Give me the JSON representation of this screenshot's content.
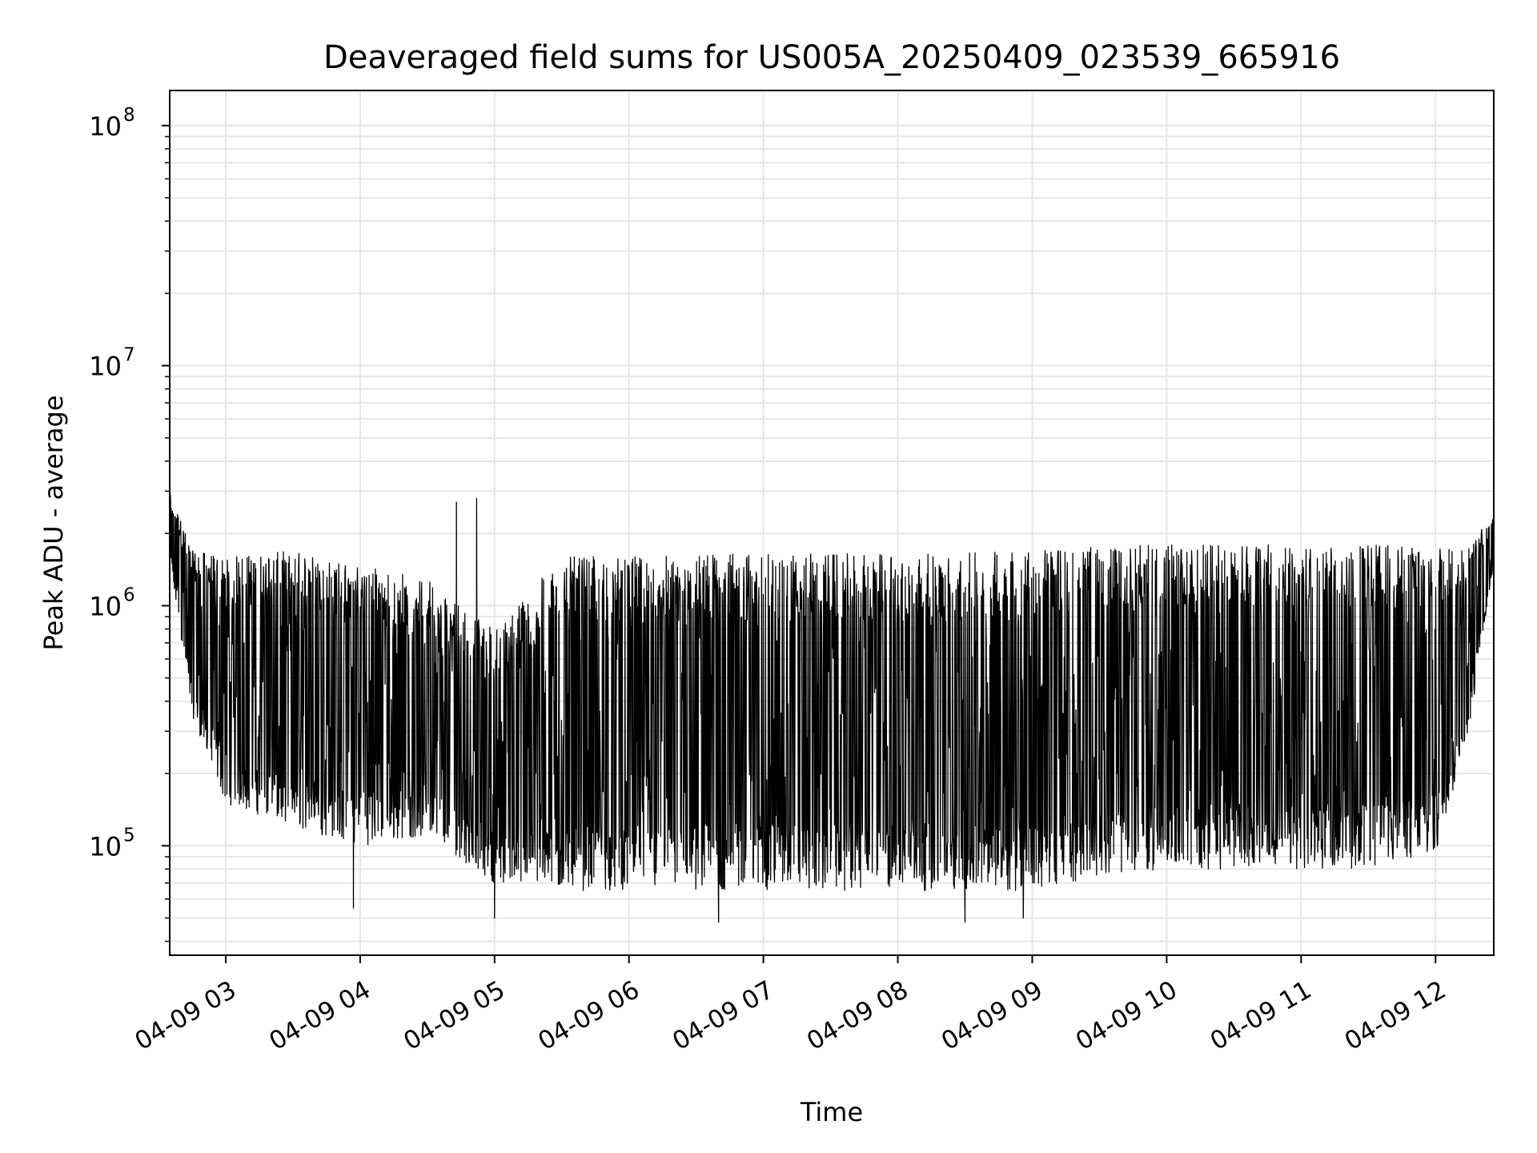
{
  "chart_data": {
    "type": "line",
    "title": "Deaveraged field sums for US005A_20250409_023539_665916",
    "xlabel": "Time",
    "ylabel": "Peak ADU - average",
    "yscale": "log",
    "grid": true,
    "xlim": [
      "2025-04-09 02:35",
      "2025-04-09 12:26"
    ],
    "ylim": [
      35000,
      140000000
    ],
    "x_ticks": [
      {
        "time": "2025-04-09 03:00",
        "label": "04-09 03"
      },
      {
        "time": "2025-04-09 04:00",
        "label": "04-09 04"
      },
      {
        "time": "2025-04-09 05:00",
        "label": "04-09 05"
      },
      {
        "time": "2025-04-09 06:00",
        "label": "04-09 06"
      },
      {
        "time": "2025-04-09 07:00",
        "label": "04-09 07"
      },
      {
        "time": "2025-04-09 08:00",
        "label": "04-09 08"
      },
      {
        "time": "2025-04-09 09:00",
        "label": "04-09 09"
      },
      {
        "time": "2025-04-09 10:00",
        "label": "04-09 10"
      },
      {
        "time": "2025-04-09 11:00",
        "label": "04-09 11"
      },
      {
        "time": "2025-04-09 12:00",
        "label": "04-09 12"
      }
    ],
    "y_ticks": [
      {
        "value": 100000,
        "base": "10",
        "exp": "5"
      },
      {
        "value": 1000000,
        "base": "10",
        "exp": "6"
      },
      {
        "value": 10000000,
        "base": "10",
        "exp": "7"
      },
      {
        "value": 100000000,
        "base": "10",
        "exp": "8"
      }
    ],
    "line_color": "#000000",
    "grid_color": "#e6e6e6",
    "envelope": {
      "description_of_series": "dense noisy time series, min/max per time bin",
      "times": [
        "2025-04-09 02:35",
        "2025-04-09 02:45",
        "2025-04-09 03:00",
        "2025-04-09 03:30",
        "2025-04-09 04:00",
        "2025-04-09 04:30",
        "2025-04-09 05:00",
        "2025-04-09 05:30",
        "2025-04-09 06:00",
        "2025-04-09 06:30",
        "2025-04-09 07:00",
        "2025-04-09 07:30",
        "2025-04-09 08:00",
        "2025-04-09 08:30",
        "2025-04-09 09:00",
        "2025-04-09 09:30",
        "2025-04-09 10:00",
        "2025-04-09 10:30",
        "2025-04-09 11:00",
        "2025-04-09 11:30",
        "2025-04-09 12:00",
        "2025-04-09 12:15",
        "2025-04-09 12:26"
      ],
      "min": [
        1500000,
        350000,
        150000,
        120000,
        100000,
        110000,
        70000,
        65000,
        65000,
        65000,
        65000,
        65000,
        65000,
        65000,
        65000,
        75000,
        80000,
        80000,
        80000,
        80000,
        90000,
        300000,
        1500000
      ],
      "max": [
        3000000,
        1700000,
        1600000,
        1700000,
        1500000,
        1300000,
        800000,
        1600000,
        1600000,
        1650000,
        1650000,
        1650000,
        1650000,
        1650000,
        1750000,
        1750000,
        1800000,
        1800000,
        1800000,
        1800000,
        1800000,
        1800000,
        2400000
      ],
      "spikes": [
        {
          "time": "2025-04-09 04:43",
          "value": 2700000
        },
        {
          "time": "2025-04-09 04:52",
          "value": 2800000
        },
        {
          "time": "2025-04-09 03:57",
          "value": 55000
        },
        {
          "time": "2025-04-09 06:40",
          "value": 48000
        },
        {
          "time": "2025-04-09 08:30",
          "value": 48000
        },
        {
          "time": "2025-04-09 08:56",
          "value": 50000
        },
        {
          "time": "2025-04-09 05:00",
          "value": 50000
        }
      ]
    }
  }
}
